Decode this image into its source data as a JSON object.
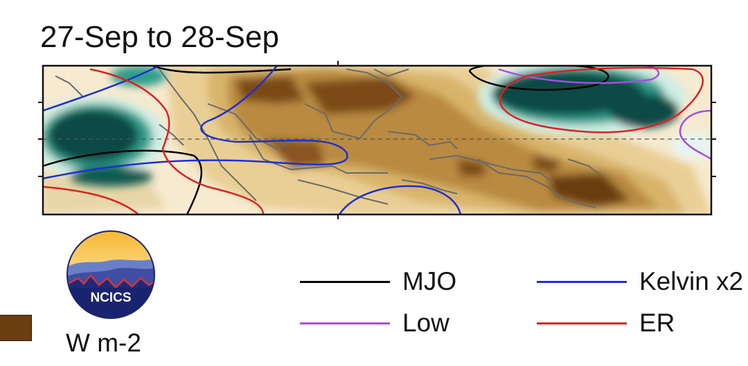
{
  "title": "27-Sep to 28-Sep",
  "logo": {
    "text": "NCICS"
  },
  "units": "W m-2",
  "colors": {
    "dry_dark": "#6b3e10",
    "dry_mid": "#a9772e",
    "dry_light": "#d8b46a",
    "dry_pale": "#f3e4c0",
    "wet_pale": "#cfeee6",
    "wet_mid": "#2f9c8a",
    "wet_dark": "#0c4a44",
    "mjo": "#000000",
    "kelvin": "#1e2fd0",
    "low": "#a64de0",
    "er": "#e02020",
    "coast": "#6a6a6a"
  },
  "legend": [
    {
      "label": "MJO",
      "color": "#000000"
    },
    {
      "label": "Kelvin x2",
      "color": "#1e2fd0"
    },
    {
      "label": "Low",
      "color": "#a64de0"
    },
    {
      "label": "ER",
      "color": "#e02020"
    }
  ]
}
